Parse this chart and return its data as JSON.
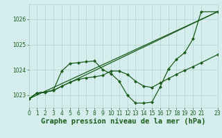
{
  "bg_color": "#d5eeed",
  "grid_color": "#b0d0cc",
  "line_color": "#1a5c1a",
  "xlabel": "Graphe pression niveau de la mer (hPa)",
  "xlabel_fontsize": 7.5,
  "xlim": [
    0,
    23
  ],
  "ylim": [
    1022.5,
    1026.6
  ],
  "yticks": [
    1023,
    1024,
    1025,
    1026
  ],
  "xticks": [
    0,
    1,
    2,
    3,
    4,
    5,
    6,
    7,
    8,
    9,
    10,
    11,
    12,
    13,
    14,
    15,
    16,
    17,
    18,
    19,
    20,
    21,
    23
  ],
  "line1_x": [
    0,
    1,
    2,
    3,
    4,
    5,
    6,
    7,
    8,
    9,
    10,
    11,
    12,
    13,
    14,
    15,
    16,
    17,
    18,
    19,
    20,
    21,
    23
  ],
  "line1_y": [
    1022.85,
    1023.08,
    1023.1,
    1023.2,
    1023.95,
    1024.25,
    1024.28,
    1024.32,
    1024.35,
    1024.0,
    1023.85,
    1023.55,
    1023.0,
    1022.68,
    1022.68,
    1022.72,
    1023.32,
    1024.02,
    1024.42,
    1024.68,
    1025.22,
    1026.3,
    1026.3
  ],
  "line2_x": [
    0,
    1,
    2,
    3,
    4,
    5,
    6,
    7,
    8,
    9,
    10,
    11,
    12,
    13,
    14,
    15,
    16,
    17,
    18,
    19,
    20,
    21,
    23
  ],
  "line2_y": [
    1022.85,
    1023.08,
    1023.12,
    1023.18,
    1023.35,
    1023.5,
    1023.62,
    1023.68,
    1023.72,
    1023.78,
    1023.95,
    1023.95,
    1023.82,
    1023.55,
    1023.35,
    1023.3,
    1023.48,
    1023.65,
    1023.82,
    1023.98,
    1024.12,
    1024.28,
    1024.6
  ],
  "line3_x": [
    0,
    23
  ],
  "line3_y": [
    1022.85,
    1026.3
  ],
  "line4_x": [
    0,
    1,
    2,
    3,
    4,
    5,
    23
  ],
  "line4_y": [
    1022.85,
    1023.08,
    1023.12,
    1023.18,
    1023.35,
    1023.5,
    1026.3
  ]
}
